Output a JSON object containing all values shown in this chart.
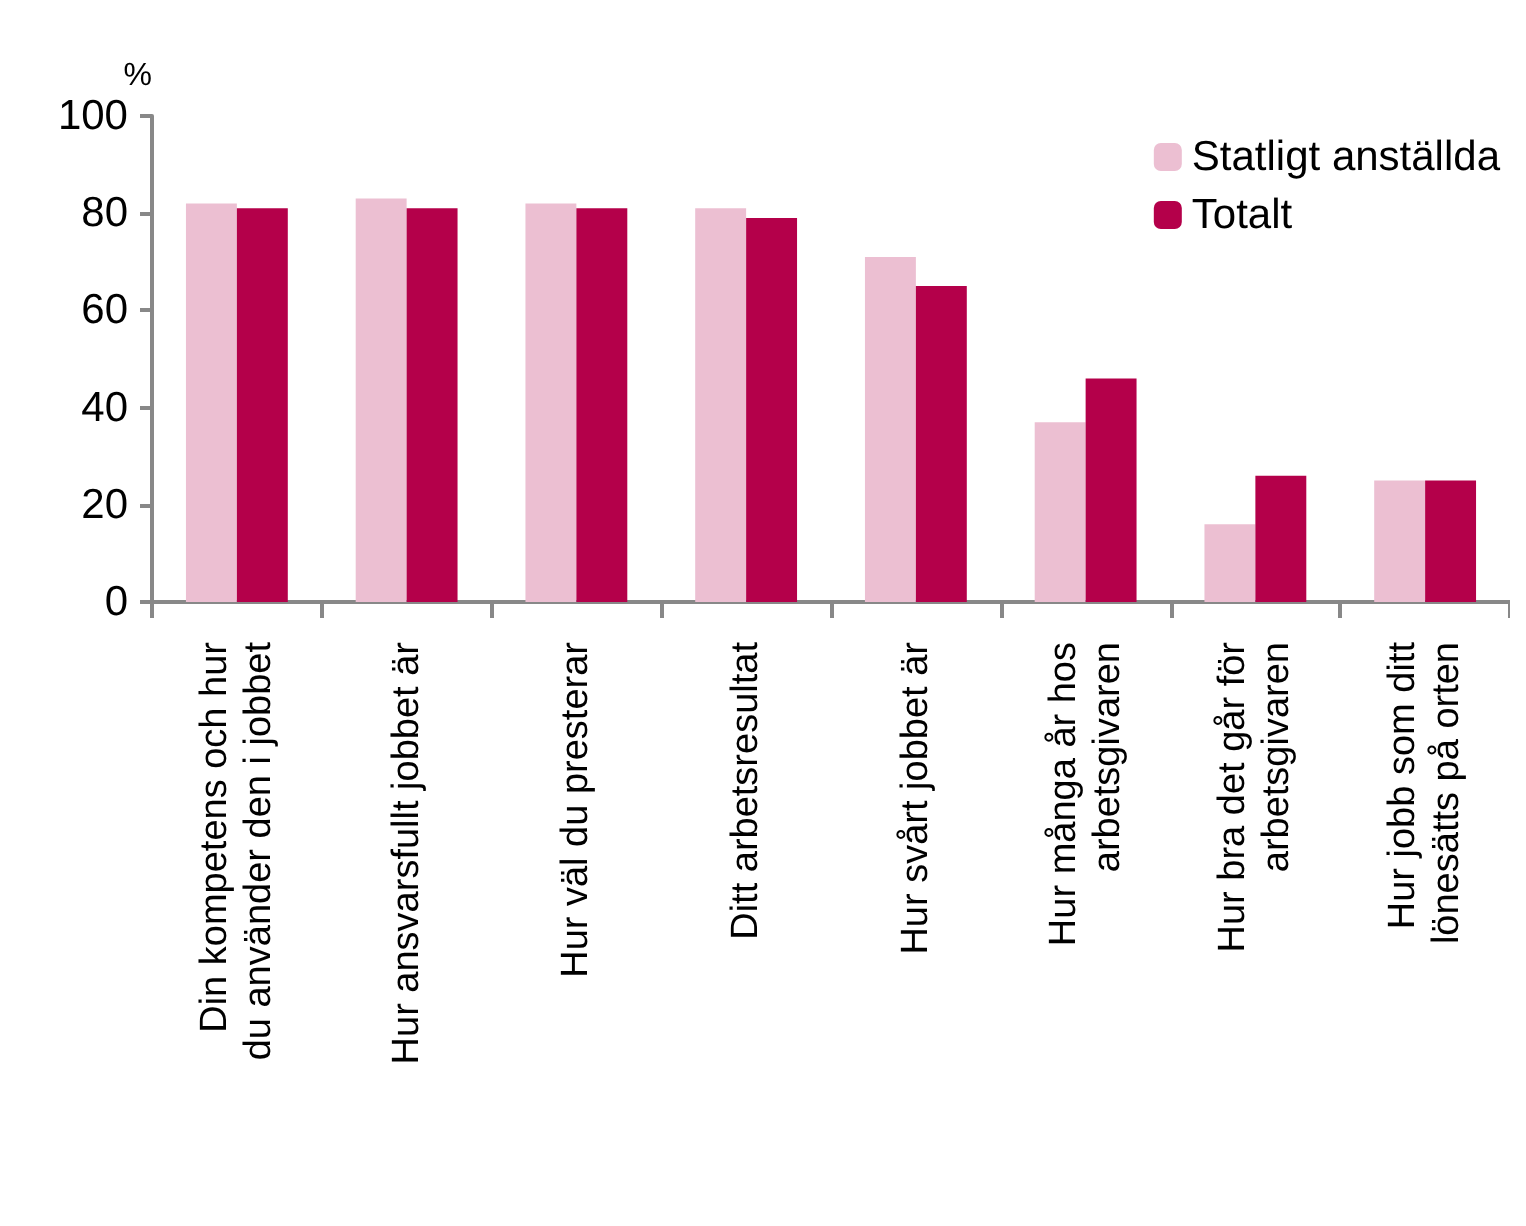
{
  "chart_data": {
    "type": "bar",
    "ylabel": "%",
    "categories": [
      "Din kompetens och hur\ndu använder den i jobbet",
      "Hur ansvarsfullt jobbet är",
      "Hur väl du presterar",
      "Ditt arbetsresultat",
      "Hur svårt jobbet är",
      "Hur många år hos\narbetsgivaren",
      "Hur bra det går för\narbetsgivaren",
      "Hur jobb som ditt\nlönesätts på orten"
    ],
    "series": [
      {
        "name": "Statligt anställda",
        "color": "#ecbfd2",
        "values": [
          82,
          83,
          82,
          81,
          71,
          37,
          16,
          25
        ]
      },
      {
        "name": "Totalt",
        "color": "#b4004a",
        "values": [
          81,
          81,
          81,
          79,
          65,
          46,
          26,
          25
        ]
      }
    ],
    "ylim": [
      0,
      100
    ],
    "yticks": [
      0,
      20,
      40,
      60,
      80,
      100
    ],
    "grid": false,
    "legend": "top right"
  }
}
